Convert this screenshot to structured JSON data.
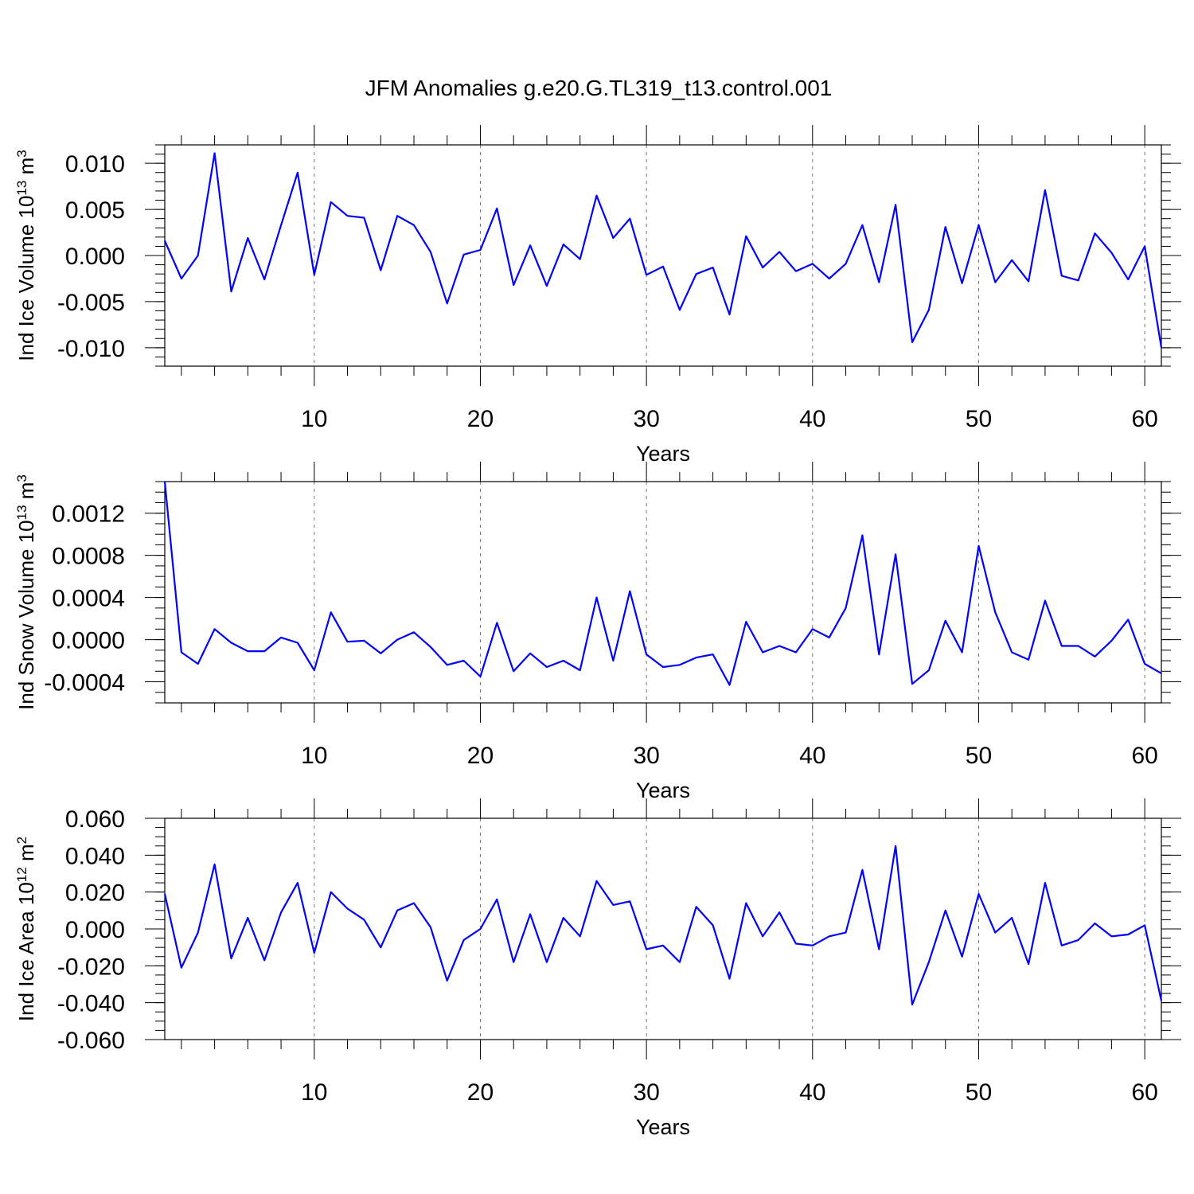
{
  "title": "JFM Anomalies g.e20.G.TL319_t13.control.001",
  "line_color": "#0000ff",
  "chart_data": [
    {
      "type": "line",
      "ylabel": {
        "text": "Ind Ice Volume 10",
        "sup1": "13",
        "mid": " m",
        "sup2": "3"
      },
      "xlabel": "Years",
      "xlim": [
        1,
        61
      ],
      "ylim": [
        -0.012,
        0.012
      ],
      "xticks": [
        "10",
        "20",
        "30",
        "40",
        "50",
        "60"
      ],
      "yticks": [
        "0.010",
        "0.005",
        "0.000",
        "-0.005",
        "-0.010"
      ],
      "ytick_values": [
        0.01,
        0.005,
        0.0,
        -0.005,
        -0.01
      ],
      "yminor_step": 0.001,
      "grid": "vertical dashed at major x ticks",
      "values": [
        0.0016,
        -0.0025,
        0.0,
        0.0111,
        -0.0039,
        0.0019,
        -0.0026,
        0.0033,
        0.009,
        -0.0021,
        0.0058,
        0.0043,
        0.0041,
        -0.0016,
        0.0043,
        0.0033,
        0.0004,
        -0.0052,
        0.0001,
        0.0006,
        0.0051,
        -0.0032,
        0.0011,
        -0.0033,
        0.0012,
        -0.0004,
        0.0065,
        0.0019,
        0.004,
        -0.0021,
        -0.0012,
        -0.0059,
        -0.002,
        -0.0013,
        -0.0064,
        0.0021,
        -0.0013,
        0.0004,
        -0.0017,
        -0.0009,
        -0.0025,
        -0.0009,
        0.0033,
        -0.0029,
        0.0055,
        -0.0094,
        -0.0059,
        0.0031,
        -0.003,
        0.0033,
        -0.0029,
        -0.0005,
        -0.0028,
        0.0071,
        -0.0022,
        -0.0027,
        0.0024,
        0.0003,
        -0.0026,
        0.001,
        -0.01
      ]
    },
    {
      "type": "line",
      "ylabel": {
        "text": "Ind Snow Volume 10",
        "sup1": "13",
        "mid": " m",
        "sup2": "3"
      },
      "xlabel": "Years",
      "xlim": [
        1,
        61
      ],
      "ylim": [
        -0.0006,
        0.0015
      ],
      "xticks": [
        "10",
        "20",
        "30",
        "40",
        "50",
        "60"
      ],
      "yticks": [
        "0.0012",
        "0.0008",
        "0.0004",
        "0.0000",
        "-0.0004"
      ],
      "ytick_values": [
        0.0012,
        0.0008,
        0.0004,
        0.0,
        -0.0004
      ],
      "yminor_step": 0.0001,
      "grid": "vertical dashed at major x ticks",
      "values": [
        0.0015,
        -0.00012,
        -0.00023,
        0.0001,
        -3e-05,
        -0.00011,
        -0.00011,
        2e-05,
        -3e-05,
        -0.00029,
        0.00026,
        -2e-05,
        -1e-05,
        -0.00013,
        0.0,
        7e-05,
        -7e-05,
        -0.00024,
        -0.0002,
        -0.00035,
        0.00016,
        -0.0003,
        -0.00013,
        -0.00026,
        -0.0002,
        -0.00029,
        0.0004,
        -0.0002,
        0.00046,
        -0.00014,
        -0.00026,
        -0.00024,
        -0.00017,
        -0.00014,
        -0.00043,
        0.00017,
        -0.00012,
        -6e-05,
        -0.00012,
        0.0001,
        2e-05,
        0.0003,
        0.00099,
        -0.00014,
        0.00081,
        -0.00042,
        -0.00029,
        0.00018,
        -0.00012,
        0.00089,
        0.00026,
        -0.00012,
        -0.00019,
        0.00037,
        -6e-05,
        -6e-05,
        -0.00016,
        -1e-05,
        0.00019,
        -0.00023,
        -0.00032
      ]
    },
    {
      "type": "line",
      "ylabel": {
        "text": "Ind Ice Area 10",
        "sup1": "12",
        "mid": " m",
        "sup2": "2"
      },
      "xlabel": "Years",
      "xlim": [
        1,
        61
      ],
      "ylim": [
        -0.06,
        0.06
      ],
      "xticks": [
        "10",
        "20",
        "30",
        "40",
        "50",
        "60"
      ],
      "yticks": [
        "0.060",
        "0.040",
        "0.020",
        "0.000",
        "-0.020",
        "-0.040",
        "-0.060"
      ],
      "ytick_values": [
        0.06,
        0.04,
        0.02,
        0.0,
        -0.02,
        -0.04,
        -0.06
      ],
      "yminor_step": 0.005,
      "grid": "vertical dashed at major x ticks",
      "values": [
        0.019,
        -0.021,
        -0.002,
        0.035,
        -0.016,
        0.006,
        -0.017,
        0.009,
        0.025,
        -0.013,
        0.02,
        0.011,
        0.005,
        -0.01,
        0.01,
        0.014,
        0.001,
        -0.028,
        -0.006,
        0.0,
        0.016,
        -0.018,
        0.008,
        -0.018,
        0.006,
        -0.004,
        0.026,
        0.013,
        0.015,
        -0.011,
        -0.009,
        -0.018,
        0.012,
        0.002,
        -0.027,
        0.014,
        -0.004,
        0.009,
        -0.008,
        -0.009,
        -0.004,
        -0.002,
        0.032,
        -0.011,
        0.045,
        -0.041,
        -0.018,
        0.01,
        -0.015,
        0.019,
        -0.002,
        0.006,
        -0.019,
        0.025,
        -0.009,
        -0.006,
        0.003,
        -0.004,
        -0.003,
        0.002,
        -0.039
      ]
    }
  ]
}
